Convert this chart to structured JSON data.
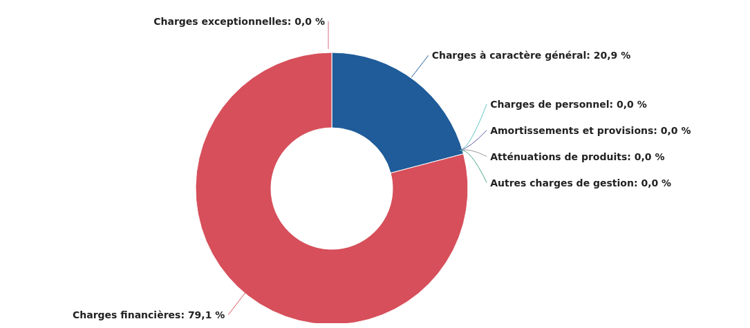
{
  "chart_data": {
    "type": "donut",
    "categories": [
      "Charges à caractère général",
      "Charges de personnel",
      "Amortissements et provisions",
      "Atténuations de produits",
      "Autres charges de gestion",
      "Charges financières",
      "Charges exceptionnelles"
    ],
    "values": [
      20.9,
      0,
      0,
      0,
      0,
      79.1,
      0
    ],
    "value_labels": [
      ": 20,9 %",
      ": 0,0 %",
      ": 0,0 %",
      ": 0,0 %",
      ": 0,0 %",
      ": 79,1 %",
      ": 0,0 %"
    ],
    "colors": [
      "#1f5c99",
      "#5fc4c4",
      "#5a5aa8",
      "#999999",
      "#4aa58f",
      "#d64f5a",
      "#d9707f"
    ]
  }
}
